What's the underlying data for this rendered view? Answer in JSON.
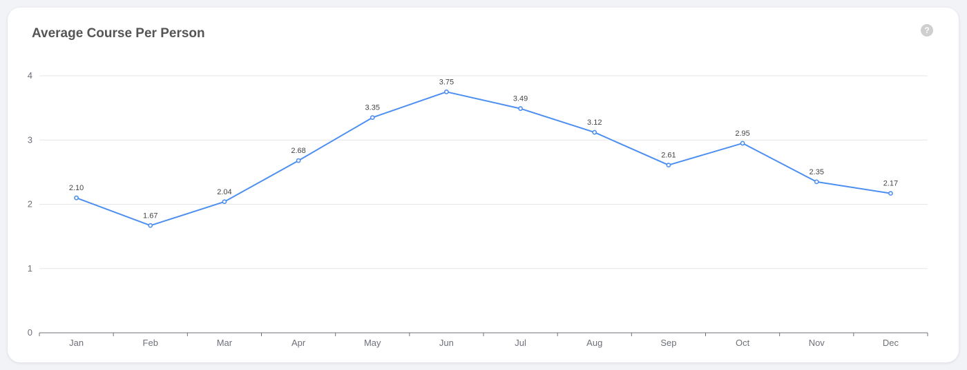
{
  "card": {
    "title": "Average Course Per Person",
    "help_icon": "question-circle-icon",
    "help_glyph": "?"
  },
  "colors": {
    "line": "#4c8ff0",
    "grid": "#e6e6e6",
    "axis": "#6e7079"
  },
  "chart_data": {
    "type": "line",
    "title": "Average Course Per Person",
    "categories": [
      "Jan",
      "Feb",
      "Mar",
      "Apr",
      "May",
      "Jun",
      "Jul",
      "Aug",
      "Sep",
      "Oct",
      "Nov",
      "Dec"
    ],
    "series": [
      {
        "values": [
          2.1,
          1.67,
          2.04,
          2.68,
          3.35,
          3.75,
          3.49,
          3.12,
          2.61,
          2.95,
          2.35,
          2.17
        ],
        "labels": [
          "2.10",
          "1.67",
          "2.04",
          "2.68",
          "3.35",
          "3.75",
          "3.49",
          "3.12",
          "2.61",
          "2.95",
          "2.35",
          "2.17"
        ]
      }
    ],
    "yticks": [
      "0",
      "1",
      "2",
      "3",
      "4"
    ],
    "ylim": [
      0,
      4
    ],
    "grid": true,
    "legend": "none"
  }
}
